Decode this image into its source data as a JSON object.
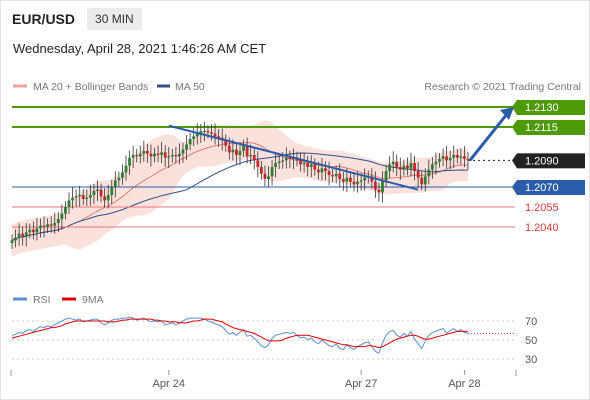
{
  "header": {
    "instrument": "EUR/USD",
    "timeframe": "30 MIN",
    "datetime": "Wednesday, April 28, 2021 1:46:26 AM CET"
  },
  "legend": {
    "bollinger_label": "MA 20 + Bollinger Bands",
    "ma50_label": "MA 50",
    "copyright": "Research © 2021 Trading Central",
    "rsi_label": "RSI",
    "rsi_ma_label": "9MA"
  },
  "colors": {
    "resistance": "#4e9a06",
    "support_pivot": "#2a5caa",
    "support": "#e87878",
    "current_price": "#222222",
    "candle_up": "#2e7d32",
    "candle_down": "#c62828",
    "bollinger_fill": "#f7c9c0",
    "ma20": "#e77a6f",
    "ma50": "#2f4f8f",
    "arrow": "#2a5caa",
    "rsi": "#5b8fd9",
    "rsi_ma": "#e00000"
  },
  "chart_data": [
    {
      "type": "candlestick",
      "title": "EUR/USD",
      "timeframe": "30 MIN",
      "x_ticks": [
        "Apr 24",
        "Apr 27",
        "Apr 28"
      ],
      "ylim": [
        1.202,
        1.214
      ],
      "levels": [
        {
          "value": 1.213,
          "label": "1.2130",
          "kind": "resistance"
        },
        {
          "value": 1.2115,
          "label": "1.2115",
          "kind": "resistance"
        },
        {
          "value": 1.209,
          "label": "1.2090",
          "kind": "current_price"
        },
        {
          "value": 1.207,
          "label": "1.2070",
          "kind": "pivot"
        },
        {
          "value": 1.2055,
          "label": "1.2055",
          "kind": "support"
        },
        {
          "value": 1.204,
          "label": "1.2040",
          "kind": "support"
        }
      ],
      "close": [
        1.203,
        1.2032,
        1.2035,
        1.2033,
        1.2036,
        1.2038,
        1.2036,
        1.2039,
        1.2041,
        1.204,
        1.2042,
        1.2041,
        1.2043,
        1.2046,
        1.205,
        1.2055,
        1.206,
        1.2062,
        1.2063,
        1.2064,
        1.2061,
        1.2062,
        1.2064,
        1.2067,
        1.2068,
        1.2063,
        1.206,
        1.2064,
        1.207,
        1.2075,
        1.2077,
        1.2081,
        1.2086,
        1.2092,
        1.2094,
        1.2093,
        1.2095,
        1.2097,
        1.2095,
        1.2093,
        1.2095,
        1.2094,
        1.2096,
        1.2092,
        1.2093,
        1.2094,
        1.2093,
        1.2095,
        1.2098,
        1.2102,
        1.2106,
        1.2108,
        1.211,
        1.2112,
        1.2112,
        1.2111,
        1.211,
        1.2108,
        1.2107,
        1.2105,
        1.2101,
        1.2096,
        1.2098,
        1.2094,
        1.2097,
        1.2101,
        1.2093,
        1.2094,
        1.209,
        1.2085,
        1.208,
        1.2076,
        1.2078,
        1.2085,
        1.2088,
        1.2089,
        1.209,
        1.2092,
        1.2091,
        1.2092,
        1.209,
        1.2087,
        1.2088,
        1.2085,
        1.2087,
        1.2083,
        1.2081,
        1.2084,
        1.2082,
        1.2079,
        1.2078,
        1.208,
        1.2076,
        1.2074,
        1.2077,
        1.2074,
        1.2072,
        1.2074,
        1.2075,
        1.2077,
        1.2078,
        1.2074,
        1.2068,
        1.2066,
        1.2075,
        1.2082,
        1.2087,
        1.2089,
        1.2085,
        1.2083,
        1.2086,
        1.2084,
        1.2088,
        1.2082,
        1.2077,
        1.2072,
        1.2078,
        1.2083,
        1.2087,
        1.2089,
        1.2091,
        1.2093,
        1.209,
        1.2092,
        1.2094,
        1.2092,
        1.2093,
        1.2091,
        1.209
      ]
    },
    {
      "type": "line",
      "title": "RSI",
      "ylim": [
        20,
        80
      ],
      "y_ticks": [
        70,
        50,
        30
      ],
      "series": [
        {
          "name": "RSI",
          "values": [
            55,
            56,
            58,
            57,
            60,
            61,
            59,
            62,
            64,
            63,
            65,
            64,
            66,
            68,
            70,
            72,
            73,
            72,
            71,
            72,
            69,
            70,
            71,
            72,
            72,
            68,
            66,
            68,
            71,
            72,
            72,
            73,
            73,
            74,
            73,
            71,
            72,
            73,
            71,
            69,
            70,
            69,
            70,
            66,
            67,
            68,
            66,
            68,
            70,
            72,
            73,
            73,
            73,
            73,
            72,
            70,
            69,
            67,
            66,
            64,
            60,
            56,
            58,
            55,
            58,
            61,
            54,
            55,
            52,
            48,
            44,
            42,
            45,
            52,
            55,
            56,
            57,
            58,
            57,
            58,
            55,
            52,
            53,
            50,
            52,
            48,
            46,
            50,
            47,
            44,
            43,
            46,
            41,
            40,
            45,
            42,
            40,
            43,
            45,
            47,
            48,
            43,
            38,
            36,
            47,
            55,
            59,
            60,
            55,
            53,
            57,
            54,
            59,
            51,
            46,
            41,
            49,
            55,
            58,
            59,
            61,
            62,
            57,
            60,
            62,
            59,
            61,
            58,
            57
          ]
        },
        {
          "name": "9MA",
          "values": [
            52,
            53,
            54,
            55,
            56,
            57,
            58,
            59,
            60,
            61,
            62,
            63,
            63,
            64,
            65,
            67,
            68,
            69,
            70,
            70,
            70,
            70,
            70,
            70,
            70,
            70,
            70,
            69,
            69,
            69,
            70,
            71,
            71,
            72,
            72,
            72,
            72,
            72,
            72,
            72,
            71,
            71,
            70,
            70,
            69,
            69,
            69,
            68,
            68,
            68,
            69,
            70,
            70,
            71,
            72,
            72,
            72,
            71,
            70,
            69,
            67,
            65,
            63,
            62,
            61,
            60,
            59,
            58,
            57,
            55,
            53,
            51,
            49,
            49,
            49,
            49,
            50,
            52,
            53,
            54,
            55,
            55,
            55,
            55,
            54,
            53,
            52,
            51,
            50,
            49,
            48,
            47,
            46,
            45,
            45,
            44,
            43,
            43,
            43,
            43,
            44,
            44,
            43,
            42,
            43,
            45,
            47,
            49,
            51,
            52,
            53,
            54,
            55,
            55,
            54,
            52,
            51,
            51,
            52,
            53,
            54,
            55,
            56,
            57,
            58,
            59,
            59,
            59,
            59
          ]
        }
      ]
    }
  ]
}
